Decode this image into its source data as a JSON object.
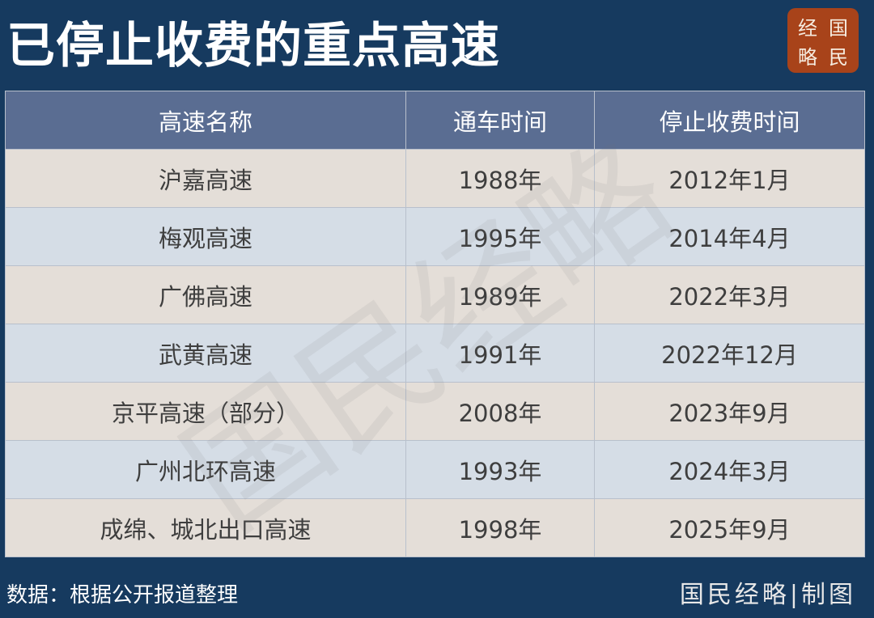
{
  "title": "已停止收费的重点高速",
  "logo": {
    "chars": [
      "经",
      "国",
      "略",
      "民"
    ],
    "color": "#a8431a"
  },
  "table": {
    "headers": [
      "高速名称",
      "通车时间",
      "停止收费时间"
    ],
    "rows": [
      [
        "沪嘉高速",
        "1988年",
        "2012年1月"
      ],
      [
        "梅观高速",
        "1995年",
        "2014年4月"
      ],
      [
        "广佛高速",
        "1989年",
        "2022年3月"
      ],
      [
        "武黄高速",
        "1991年",
        "2022年12月"
      ],
      [
        "京平高速（部分）",
        "2008年",
        "2023年9月"
      ],
      [
        "广州北环高速",
        "1993年",
        "2024年3月"
      ],
      [
        "成绵、城北出口高速",
        "1998年",
        "2025年9月"
      ]
    ]
  },
  "watermark": "国民经略",
  "source": "数据：根据公开报道整理",
  "credit": "国民经略|制图"
}
